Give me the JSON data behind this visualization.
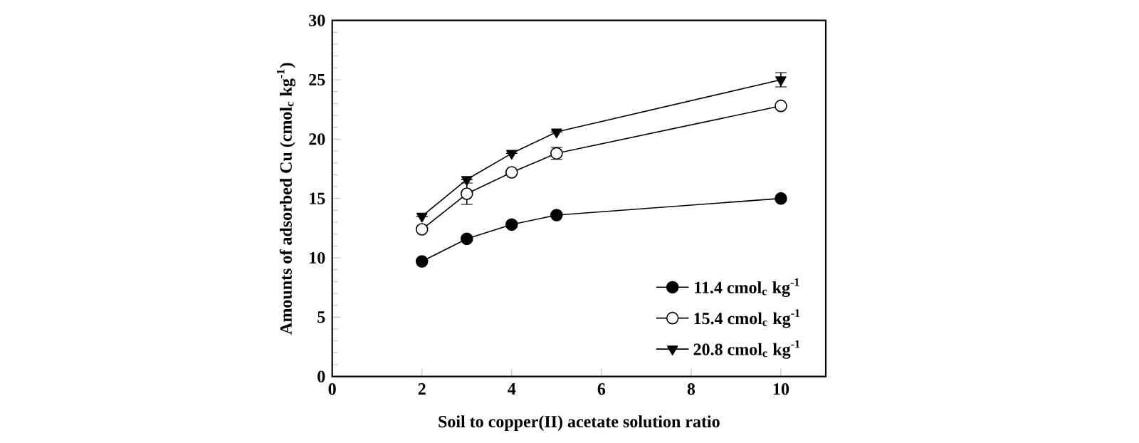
{
  "chart_data": {
    "type": "line",
    "xlabel": "Soil to copper(II) acetate solution ratio",
    "ylabel": "Amounts of adsorbed Cu (cmol$_{c}$ kg$^{-1}$)",
    "x": [
      2,
      3,
      4,
      5,
      10
    ],
    "series": [
      {
        "name": "11.4 cmol$_{c}$ kg$^{-1}$",
        "color": "#000000",
        "marker": "circle",
        "values": [
          9.7,
          11.6,
          12.8,
          13.6,
          15.0
        ],
        "errors": [
          null,
          null,
          null,
          null,
          null
        ]
      },
      {
        "name": "15.4 cmol$_{c}$ kg$^{-1}$",
        "color": "#000000",
        "marker": "circle",
        "values": [
          12.4,
          15.4,
          17.2,
          18.8,
          22.8
        ],
        "errors": [
          null,
          0.9,
          null,
          0.5,
          null
        ]
      },
      {
        "name": "20.8 cmol$_{c}$ kg$^{-1}$",
        "color": "#000000",
        "marker": "triangle",
        "values": [
          13.5,
          16.6,
          18.8,
          20.6,
          25.0
        ],
        "errors": [
          null,
          null,
          null,
          null,
          0.6
        ]
      }
    ],
    "xlim": [
      0,
      11
    ],
    "xticks": [
      0,
      2,
      4,
      6,
      8,
      10
    ],
    "ylim": [
      0,
      30
    ],
    "yticks": [
      0,
      5,
      10,
      15,
      20,
      25,
      30
    ],
    "grid": false,
    "legend": "bottom right",
    "line_style": "solid"
  }
}
